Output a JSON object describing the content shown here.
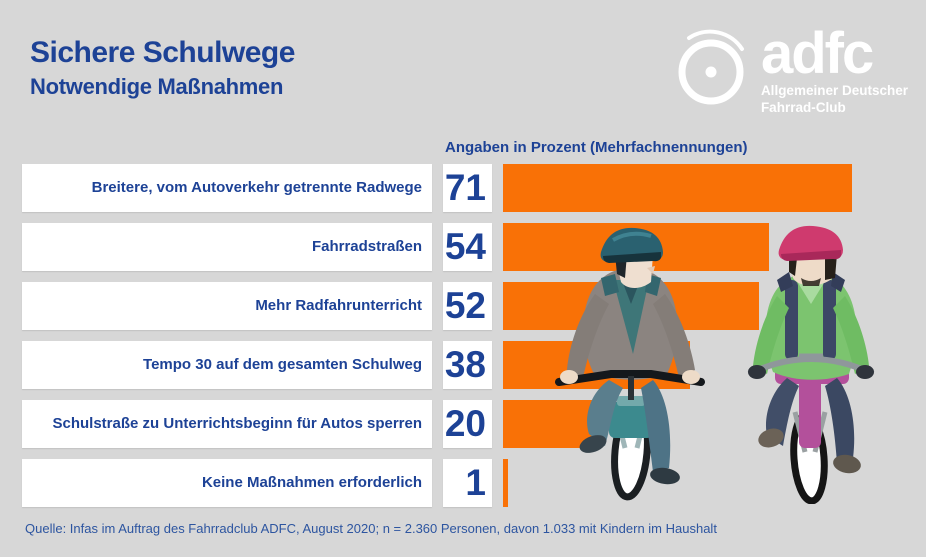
{
  "header": {
    "title": "Sichere Schulwege",
    "subtitle": "Notwendige Maßnahmen"
  },
  "logo": {
    "brand": "adfc",
    "tagline_line1": "Allgemeiner Deutscher",
    "tagline_line2": "Fahrrad-Club",
    "wheel_icon": "bicycle-wheel-icon"
  },
  "chart_data": {
    "type": "bar",
    "orientation": "horizontal",
    "header": "Angaben in Prozent (Mehrfachnennungen)",
    "categories": [
      "Breitere, vom Autoverkehr getrennte Radwege",
      "Fahrradstraßen",
      "Mehr Radfahrunterricht",
      "Tempo 30 auf dem gesamten Schulweg",
      "Schulstraße zu Unterrichtsbeginn für Autos sperren",
      "Keine Maßnahmen erforderlich"
    ],
    "values": [
      71,
      54,
      52,
      38,
      20,
      1
    ],
    "unit": "percent",
    "xlim": [
      0,
      86
    ],
    "bar_color": "#f97106",
    "value_color": "#1d4296",
    "legend": "none",
    "grid": false
  },
  "footer": {
    "source": "Quelle: Infas im Auftrag des Fahrradclub ADFC, August 2020; n = 2.360 Personen, davon 1.033 mit Kindern im Haushalt"
  },
  "colors": {
    "background": "#d7d7d7",
    "accent_orange": "#f97106",
    "text_blue": "#1d4296",
    "logo_white": "#ffffff"
  }
}
